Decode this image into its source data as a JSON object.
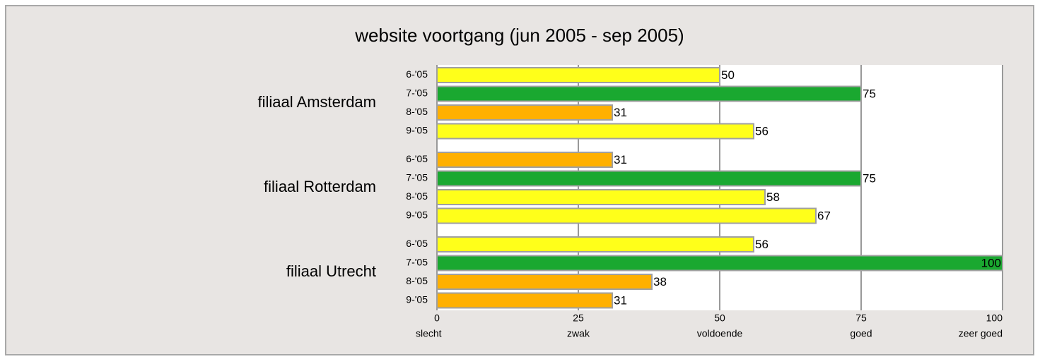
{
  "chart_data": {
    "type": "bar",
    "title": "website voortgang (jun 2005 - sep 2005)",
    "groups": [
      {
        "name": "filiaal Amsterdam",
        "categories": [
          "6-'05",
          "7-'05",
          "8-'05",
          "9-'05"
        ],
        "values": [
          50,
          75,
          31,
          56
        ],
        "colors": [
          "#ffff1a",
          "#1aa830",
          "#ffb000",
          "#ffff1a"
        ]
      },
      {
        "name": "filiaal Rotterdam",
        "categories": [
          "6-'05",
          "7-'05",
          "8-'05",
          "9-'05"
        ],
        "values": [
          31,
          75,
          58,
          67
        ],
        "colors": [
          "#ffb000",
          "#1aa830",
          "#ffff1a",
          "#ffff1a"
        ]
      },
      {
        "name": "filiaal Utrecht",
        "categories": [
          "6-'05",
          "7-'05",
          "8-'05",
          "9-'05"
        ],
        "values": [
          56,
          100,
          38,
          31
        ],
        "colors": [
          "#ffff1a",
          "#1aa830",
          "#ffb000",
          "#ffb000"
        ]
      }
    ],
    "xlim": [
      0,
      100
    ],
    "xticks": [
      0,
      25,
      50,
      75,
      100
    ],
    "xtick_sublabels": [
      "slecht",
      "zwak",
      "voldoende",
      "goed",
      "zeer goed"
    ],
    "grid": true
  }
}
